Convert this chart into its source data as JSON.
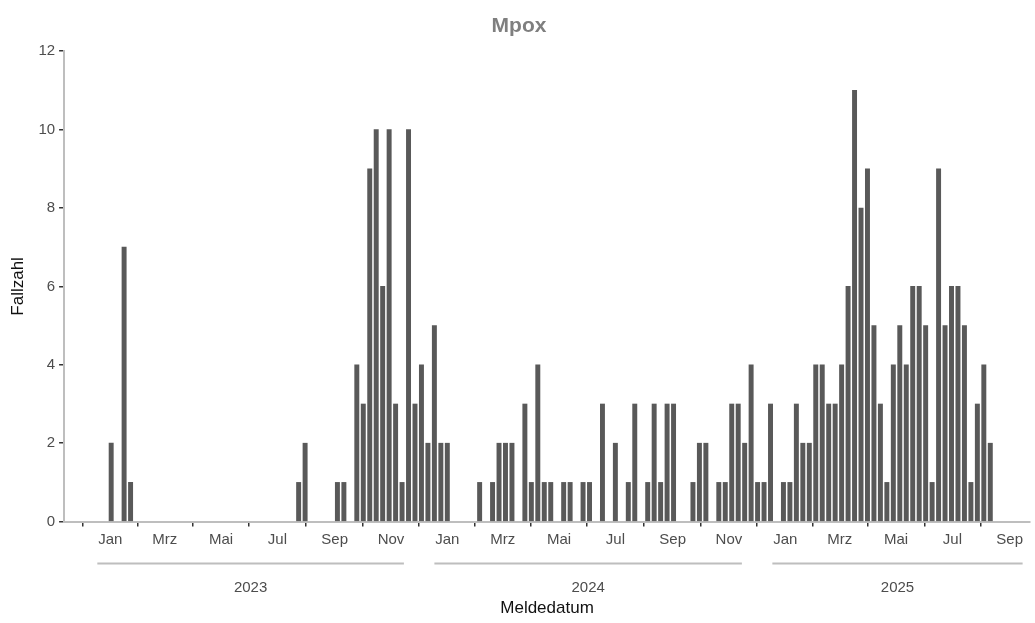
{
  "chart_data": {
    "type": "bar",
    "title": "Mpox",
    "xlabel": "Meldedatum",
    "ylabel": "Fallzahl",
    "x": [
      "2023-01-02",
      "2023-01-16",
      "2023-01-23",
      "2023-07-24",
      "2023-07-31",
      "2023-09-04",
      "2023-09-11",
      "2023-09-25",
      "2023-10-02",
      "2023-10-09",
      "2023-10-16",
      "2023-10-23",
      "2023-10-30",
      "2023-11-06",
      "2023-11-13",
      "2023-11-20",
      "2023-11-27",
      "2023-12-04",
      "2023-12-11",
      "2023-12-18",
      "2023-12-25",
      "2024-01-01",
      "2024-02-05",
      "2024-02-19",
      "2024-02-26",
      "2024-03-04",
      "2024-03-11",
      "2024-03-25",
      "2024-04-01",
      "2024-04-08",
      "2024-04-15",
      "2024-04-22",
      "2024-05-06",
      "2024-05-13",
      "2024-05-27",
      "2024-06-03",
      "2024-06-17",
      "2024-07-01",
      "2024-07-15",
      "2024-07-22",
      "2024-08-05",
      "2024-08-12",
      "2024-08-19",
      "2024-08-26",
      "2024-09-02",
      "2024-09-23",
      "2024-09-30",
      "2024-10-07",
      "2024-10-21",
      "2024-10-28",
      "2024-11-04",
      "2024-11-11",
      "2024-11-18",
      "2024-11-25",
      "2024-12-02",
      "2024-12-09",
      "2024-12-16",
      "2024-12-30",
      "2025-01-06",
      "2025-01-13",
      "2025-01-20",
      "2025-01-27",
      "2025-02-03",
      "2025-02-10",
      "2025-02-17",
      "2025-02-24",
      "2025-03-03",
      "2025-03-10",
      "2025-03-17",
      "2025-03-24",
      "2025-03-31",
      "2025-04-07",
      "2025-04-14",
      "2025-04-21",
      "2025-04-28",
      "2025-05-05",
      "2025-05-12",
      "2025-05-19",
      "2025-05-26",
      "2025-06-02",
      "2025-06-09",
      "2025-06-16",
      "2025-06-23",
      "2025-06-30",
      "2025-07-07",
      "2025-07-14",
      "2025-07-21",
      "2025-07-28",
      "2025-08-04",
      "2025-08-11"
    ],
    "series": [
      {
        "color": "#595959",
        "values": [
          2,
          7,
          1,
          1,
          2,
          1,
          1,
          4,
          3,
          9,
          10,
          6,
          10,
          3,
          1,
          10,
          3,
          4,
          2,
          5,
          2,
          2,
          1,
          1,
          2,
          2,
          2,
          3,
          1,
          4,
          1,
          1,
          1,
          1,
          1,
          1,
          3,
          2,
          1,
          3,
          1,
          3,
          1,
          3,
          3,
          1,
          2,
          2,
          1,
          1,
          3,
          3,
          2,
          4,
          1,
          1,
          3,
          1,
          1,
          3,
          2,
          2,
          4,
          4,
          3,
          3,
          4,
          6,
          11,
          8,
          9,
          5,
          3,
          1,
          4,
          5,
          4,
          6,
          6,
          5,
          1,
          9,
          5,
          6,
          6,
          5,
          1,
          3,
          4,
          2
        ]
      }
    ],
    "xlim": [
      "2022-11-12",
      "2025-09-23"
    ],
    "xticks": [
      {
        "value": "2023-01-01",
        "label": "Jan"
      },
      {
        "value": "2023-03-01",
        "label": "Mrz"
      },
      {
        "value": "2023-05-01",
        "label": "Mai"
      },
      {
        "value": "2023-07-01",
        "label": "Jul"
      },
      {
        "value": "2023-09-01",
        "label": "Sep"
      },
      {
        "value": "2023-11-01",
        "label": "Nov"
      },
      {
        "value": "2024-01-01",
        "label": "Jan"
      },
      {
        "value": "2024-03-01",
        "label": "Mrz"
      },
      {
        "value": "2024-05-01",
        "label": "Mai"
      },
      {
        "value": "2024-07-01",
        "label": "Jul"
      },
      {
        "value": "2024-09-01",
        "label": "Sep"
      },
      {
        "value": "2024-11-01",
        "label": "Nov"
      },
      {
        "value": "2025-01-01",
        "label": "Jan"
      },
      {
        "value": "2025-03-01",
        "label": "Mrz"
      },
      {
        "value": "2025-05-01",
        "label": "Mai"
      },
      {
        "value": "2025-07-01",
        "label": "Jul"
      },
      {
        "value": "2025-09-01",
        "label": "Sep"
      }
    ],
    "ylim": [
      0,
      12
    ],
    "yticks": [
      0,
      2,
      4,
      6,
      8,
      10,
      12
    ],
    "grid": false,
    "legend": false,
    "annotations": [
      "2023",
      "2024",
      "2025"
    ]
  }
}
